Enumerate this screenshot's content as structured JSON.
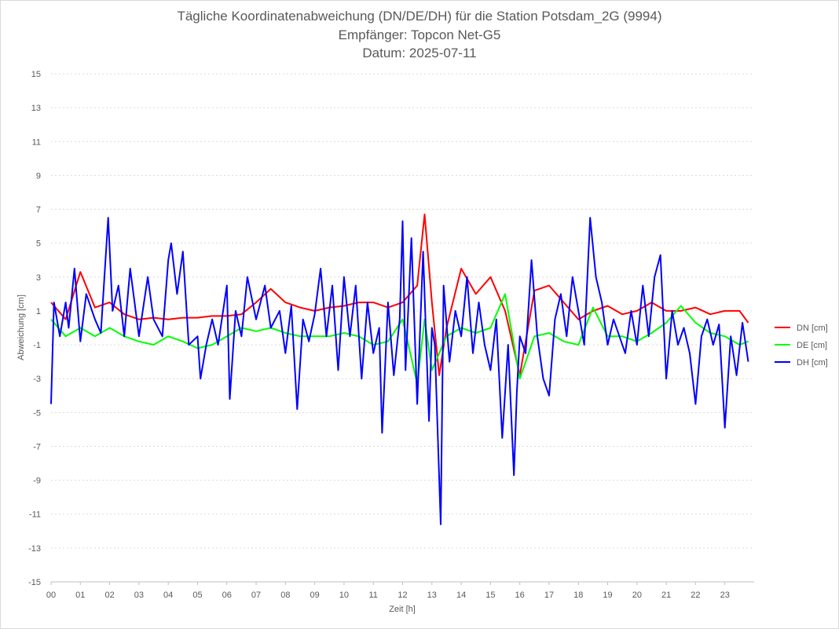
{
  "chart_data": {
    "type": "line",
    "title": "Tägliche Koordinatenabweichung (DN/DE/DH) für die Station Potsdam_2G (9994)",
    "subtitle_receiver": "Empfänger: Topcon Net-G5",
    "subtitle_date": "Datum: 2025-07-11",
    "xlabel": "Zeit [h]",
    "ylabel": "Abweichung [cm]",
    "ylim": [
      -15,
      15
    ],
    "xlim": [
      0,
      24
    ],
    "y_ticks": [
      "15",
      "13",
      "11",
      "9",
      "7",
      "5",
      "3",
      "1",
      "-1",
      "-3",
      "-5",
      "-7",
      "-9",
      "-11",
      "-13",
      "-15"
    ],
    "x_ticks": [
      "00",
      "01",
      "02",
      "03",
      "04",
      "05",
      "06",
      "07",
      "08",
      "09",
      "10",
      "11",
      "12",
      "13",
      "14",
      "15",
      "16",
      "17",
      "18",
      "19",
      "20",
      "21",
      "22",
      "23"
    ],
    "grid": true,
    "legend_position": "right",
    "x_unit": "hours",
    "series": [
      {
        "name": "DN [cm]",
        "color": "#ff0000",
        "x": [
          0,
          0.5,
          1,
          1.5,
          2,
          2.5,
          3,
          3.5,
          4,
          4.5,
          5,
          5.5,
          6,
          6.5,
          7,
          7.5,
          8,
          8.5,
          9,
          9.5,
          10,
          10.5,
          11,
          11.5,
          12,
          12.5,
          12.75,
          13,
          13.25,
          13.5,
          14,
          14.5,
          15,
          15.5,
          16,
          16.5,
          17,
          17.5,
          18,
          18.5,
          19,
          19.5,
          20,
          20.5,
          21,
          21.5,
          22,
          22.5,
          23,
          23.5,
          23.8
        ],
        "values": [
          1.5,
          0.5,
          3.3,
          1.2,
          1.5,
          0.8,
          0.5,
          0.6,
          0.5,
          0.6,
          0.6,
          0.7,
          0.7,
          0.8,
          1.5,
          2.3,
          1.5,
          1.2,
          1,
          1.2,
          1.3,
          1.5,
          1.5,
          1.2,
          1.5,
          2.5,
          6.7,
          1.5,
          -2.8,
          0,
          3.5,
          2,
          3,
          1,
          -2.8,
          2.2,
          2.5,
          1.5,
          0.5,
          1,
          1.3,
          0.8,
          1,
          1.5,
          1,
          1,
          1.2,
          0.8,
          1,
          1,
          0.3
        ]
      },
      {
        "name": "DE [cm]",
        "color": "#00ff00",
        "x": [
          0,
          0.5,
          1,
          1.5,
          2,
          2.5,
          3,
          3.5,
          4,
          4.5,
          5,
          5.5,
          6,
          6.5,
          7,
          7.5,
          8,
          8.5,
          9,
          9.5,
          10,
          10.5,
          11,
          11.5,
          12,
          12.5,
          12.75,
          13,
          13.5,
          14,
          14.5,
          15,
          15.5,
          16,
          16.5,
          17,
          17.5,
          18,
          18.5,
          19,
          19.5,
          20,
          20.5,
          21,
          21.5,
          22,
          22.5,
          23,
          23.5,
          23.8
        ],
        "values": [
          0.5,
          -0.5,
          0,
          -0.5,
          0,
          -0.5,
          -0.8,
          -1,
          -0.5,
          -0.8,
          -1.2,
          -1,
          -0.5,
          0,
          -0.2,
          0,
          -0.3,
          -0.5,
          -0.5,
          -0.5,
          -0.3,
          -0.5,
          -1,
          -0.8,
          0.5,
          -3.3,
          0.5,
          -2.5,
          -0.5,
          0,
          -0.3,
          0,
          2,
          -3,
          -0.5,
          -0.3,
          -0.8,
          -1,
          1.2,
          -0.5,
          -0.5,
          -0.8,
          -0.3,
          0.3,
          1.3,
          0.3,
          -0.3,
          -0.5,
          -1,
          -0.8
        ]
      },
      {
        "name": "DH [cm]",
        "color": "#0000ff",
        "x": [
          0,
          0.1,
          0.3,
          0.5,
          0.6,
          0.8,
          1,
          1.2,
          1.5,
          1.7,
          1.95,
          2.1,
          2.3,
          2.5,
          2.7,
          3,
          3.3,
          3.5,
          3.8,
          4,
          4.1,
          4.3,
          4.5,
          4.7,
          5,
          5.1,
          5.3,
          5.5,
          5.7,
          6,
          6.1,
          6.3,
          6.5,
          6.7,
          7,
          7.3,
          7.5,
          7.8,
          8,
          8.2,
          8.4,
          8.6,
          8.8,
          9,
          9.2,
          9.4,
          9.6,
          9.8,
          10,
          10.2,
          10.4,
          10.6,
          10.8,
          11,
          11.2,
          11.3,
          11.5,
          11.7,
          11.9,
          12,
          12.1,
          12.3,
          12.5,
          12.7,
          12.9,
          13,
          13.1,
          13.3,
          13.4,
          13.6,
          13.8,
          14,
          14.2,
          14.4,
          14.6,
          14.8,
          15,
          15.2,
          15.4,
          15.6,
          15.8,
          15.9,
          16,
          16.2,
          16.4,
          16.6,
          16.8,
          17,
          17.2,
          17.4,
          17.6,
          17.8,
          18,
          18.2,
          18.4,
          18.6,
          18.8,
          19,
          19.2,
          19.4,
          19.6,
          19.8,
          20,
          20.2,
          20.4,
          20.6,
          20.8,
          21,
          21.2,
          21.4,
          21.6,
          21.8,
          22,
          22.2,
          22.4,
          22.6,
          22.8,
          23,
          23.2,
          23.4,
          23.6,
          23.8
        ],
        "values": [
          -4.5,
          1.5,
          -0.5,
          1.5,
          0,
          3.5,
          -0.8,
          2,
          0.5,
          -0.3,
          6.5,
          1,
          2.5,
          -0.5,
          3.5,
          -0.5,
          3,
          0.5,
          -0.5,
          4,
          5,
          2,
          4.5,
          -1,
          -0.5,
          -3,
          -1,
          0.5,
          -1,
          2.5,
          -4.2,
          1,
          -0.5,
          3,
          0.5,
          2.5,
          0,
          1,
          -1.5,
          1.3,
          -4.8,
          0.5,
          -0.8,
          0.8,
          3.5,
          -0.5,
          2.5,
          -2.5,
          3,
          -0.5,
          2.5,
          -3,
          1.5,
          -1.5,
          0,
          -6.2,
          1.5,
          -2.8,
          0.5,
          6.3,
          -2.5,
          5.3,
          -4.5,
          4.5,
          -5.5,
          0,
          -1,
          -11.6,
          2.5,
          -2,
          1,
          -0.5,
          3,
          -1.5,
          1.5,
          -1,
          -2.5,
          0.5,
          -6.5,
          -1,
          -8.7,
          -3.8,
          -0.5,
          -1.5,
          4,
          -0.5,
          -3,
          -4,
          0.5,
          2,
          -0.5,
          3,
          1,
          -1,
          6.5,
          3,
          1.5,
          -1,
          0.5,
          -0.5,
          -1.5,
          1,
          -1,
          2.5,
          -0.5,
          3,
          4.3,
          -3,
          1,
          -1,
          0,
          -1.5,
          -4.5,
          -0.5,
          0.5,
          -1,
          0.2,
          -5.9,
          -0.5,
          -2.8,
          0.3,
          -2
        ]
      }
    ]
  }
}
